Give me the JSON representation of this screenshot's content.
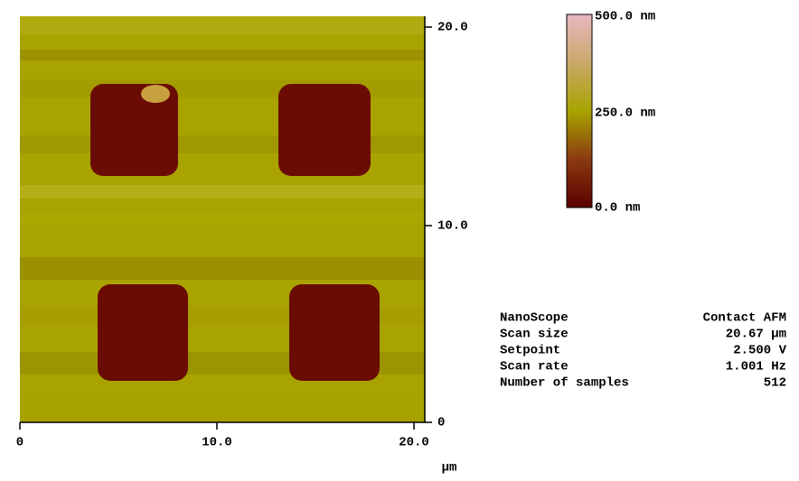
{
  "image": {
    "y_axis_labels": [
      "20.0",
      "10.0",
      "0"
    ],
    "x_axis_labels": [
      "0",
      "10.0",
      "20.0"
    ],
    "x_unit": "µm"
  },
  "color_scale": {
    "labels": [
      "500.0 nm",
      "250.0 nm",
      "0.0 nm"
    ]
  },
  "info": {
    "rows": [
      [
        "NanoScope",
        "Contact AFM"
      ],
      [
        "Scan size",
        "20.67 µm"
      ],
      [
        "Setpoint",
        "2.500 V"
      ],
      [
        "Scan rate",
        "1.001 Hz"
      ],
      [
        "Number of samples",
        "512"
      ]
    ]
  }
}
